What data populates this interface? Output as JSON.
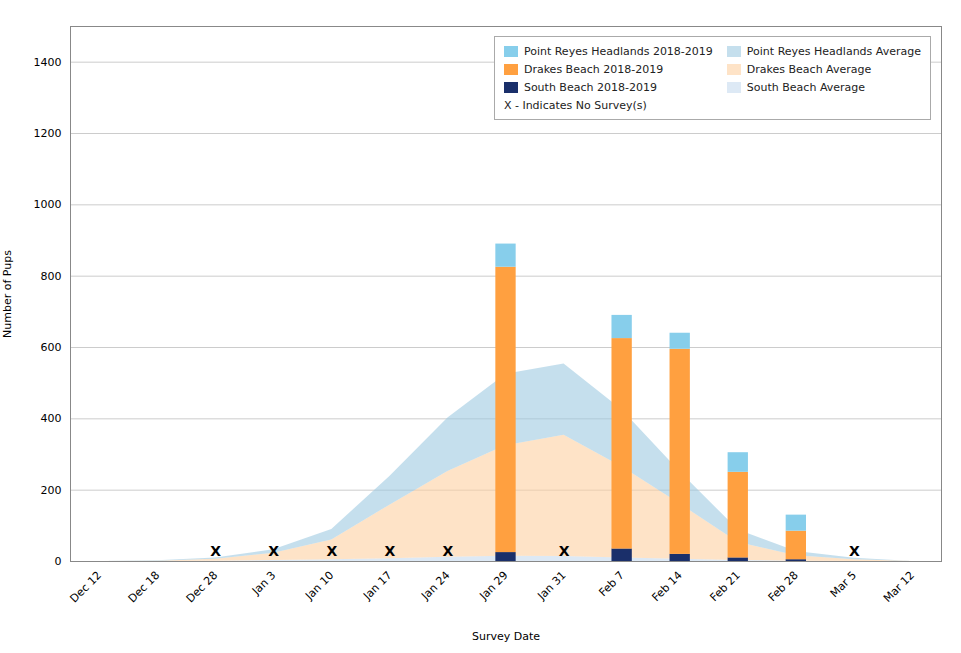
{
  "chart_data": {
    "type": "bar",
    "categories": [
      "Dec 12",
      "Dec 18",
      "Dec 28",
      "Jan 3",
      "Jan 10",
      "Jan 17",
      "Jan 24",
      "Jan 29",
      "Jan 31",
      "Feb 7",
      "Feb 14",
      "Feb 21",
      "Feb 28",
      "Mar 5",
      "Mar 12"
    ],
    "series": [
      {
        "name": "South Beach Average",
        "type": "area",
        "color": "#C6DBEF",
        "values": [
          0,
          0,
          1,
          3,
          5,
          8,
          12,
          15,
          14,
          10,
          6,
          3,
          1,
          0,
          0
        ]
      },
      {
        "name": "Drakes Beach Average",
        "type": "area",
        "color": "#FDD0A2",
        "values": [
          0,
          1,
          5,
          20,
          55,
          150,
          240,
          310,
          340,
          255,
          155,
          50,
          15,
          5,
          0
        ]
      },
      {
        "name": "Point Reyes Headlands Average",
        "type": "area",
        "color": "#9ECAE1",
        "values": [
          0,
          1,
          4,
          10,
          30,
          80,
          150,
          200,
          200,
          160,
          90,
          35,
          12,
          4,
          0
        ]
      },
      {
        "name": "South Beach 2018-2019",
        "type": "bar",
        "color": "#1A2F6A",
        "values": [
          null,
          null,
          null,
          null,
          null,
          null,
          null,
          25,
          null,
          35,
          20,
          10,
          5,
          null,
          null
        ]
      },
      {
        "name": "Drakes Beach 2018-2019",
        "type": "bar",
        "color": "#FFA040",
        "values": [
          null,
          null,
          null,
          null,
          null,
          null,
          null,
          800,
          null,
          590,
          575,
          240,
          80,
          null,
          null
        ]
      },
      {
        "name": "Point Reyes Headlands 2018-2019",
        "type": "bar",
        "color": "#87CEEB",
        "values": [
          null,
          null,
          null,
          null,
          null,
          null,
          null,
          65,
          null,
          65,
          45,
          55,
          45,
          null,
          null
        ]
      }
    ],
    "annotations": [
      {
        "text": "X",
        "x": "Dec 28"
      },
      {
        "text": "X",
        "x": "Jan 3"
      },
      {
        "text": "X",
        "x": "Jan 10"
      },
      {
        "text": "X",
        "x": "Jan 17"
      },
      {
        "text": "X",
        "x": "Jan 24"
      },
      {
        "text": "X",
        "x": "Jan 31"
      },
      {
        "text": "X",
        "x": "Mar 5"
      }
    ],
    "legend_note": "X - Indicates No Survey(s)",
    "xlabel": "Survey Date",
    "ylabel": "Number of Pups",
    "ylim": [
      0,
      1500
    ],
    "yticks": [
      0,
      200,
      400,
      600,
      800,
      1000,
      1200,
      1400
    ],
    "grid": true,
    "stacked": true,
    "legend": "upper right"
  }
}
